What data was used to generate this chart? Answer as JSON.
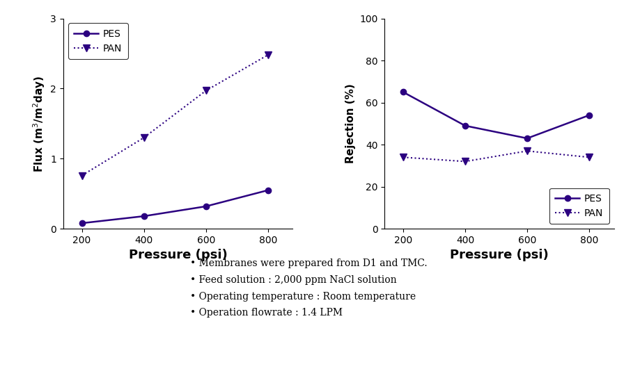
{
  "pressure": [
    200,
    400,
    600,
    800
  ],
  "flux_pes": [
    0.08,
    0.18,
    0.32,
    0.55
  ],
  "flux_pan": [
    0.76,
    1.3,
    1.97,
    2.48
  ],
  "rejection_pes": [
    65,
    49,
    43,
    54
  ],
  "rejection_pan": [
    34,
    32,
    37,
    34
  ],
  "line_color": "#2B0080",
  "flux_ylabel": "Flux (m$^3$/m$^2$day)",
  "flux_ylim": [
    0,
    3
  ],
  "flux_yticks": [
    0,
    1,
    2,
    3
  ],
  "rejection_ylabel": "Rejection (%)",
  "rejection_ylim": [
    0,
    100
  ],
  "rejection_yticks": [
    0,
    20,
    40,
    60,
    80,
    100
  ],
  "xlabel": "Pressure (psi)",
  "xticks": [
    200,
    400,
    600,
    800
  ],
  "annotations": [
    "• Membranes were prepared from D1 and TMC.",
    "• Feed solution : 2,000 ppm NaCl solution",
    "• Operating temperature : Room temperature",
    "• Operation flowrate : 1.4 LPM"
  ],
  "bg_color": "#ffffff"
}
